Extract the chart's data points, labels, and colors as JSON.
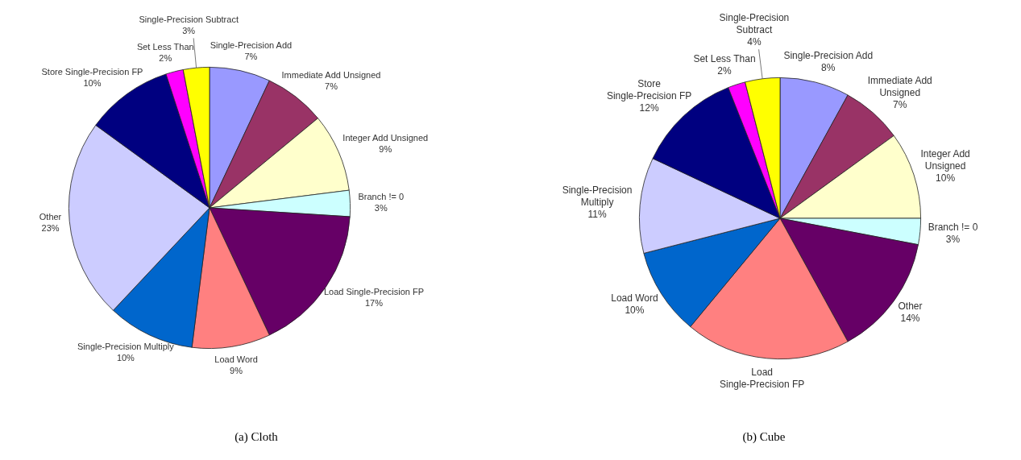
{
  "chart_data": [
    {
      "type": "pie",
      "title": "(a) Cloth",
      "categories": [
        "Single-Precision Add",
        "Immediate Add Unsigned",
        "Integer Add Unsigned",
        "Branch != 0",
        "Load Single-Precision FP",
        "Load Word",
        "Single-Precision Multiply",
        "Other",
        "Store Single-Precision FP",
        "Set Less Than",
        "Single-Precision Subtract"
      ],
      "values": [
        7,
        7,
        9,
        3,
        17,
        9,
        10,
        23,
        10,
        2,
        3
      ],
      "value_labels": [
        "7%",
        "7%",
        "9%",
        "3%",
        "17%",
        "9%",
        "10%",
        "23%",
        "10%",
        "2%",
        "3%"
      ],
      "colors": [
        "#9999ff",
        "#993366",
        "#ffffcc",
        "#ccffff",
        "#660066",
        "#ff8080",
        "#0066cc",
        "#ccccff",
        "#000080",
        "#ff00ff",
        "#ffff00"
      ]
    },
    {
      "type": "pie",
      "title": "(b) Cube",
      "categories": [
        "Single-Precision Add",
        "Immediate Add Unsigned",
        "Integer Add Unsigned",
        "Branch != 0",
        "Other",
        "Load Single-Precision FP",
        "Load Word",
        "Single-Precision Multiply",
        "Store Single-Precision FP",
        "Set Less Than",
        "Single-Precision Subtract"
      ],
      "values": [
        8,
        7,
        10,
        3,
        14,
        19,
        10,
        11,
        12,
        2,
        4
      ],
      "value_labels": [
        "8%",
        "7%",
        "10%",
        "3%",
        "14%",
        null,
        "10%",
        "11%",
        "12%",
        "2%",
        "4%"
      ],
      "colors": [
        "#9999ff",
        "#993366",
        "#ffffcc",
        "#ccffff",
        "#660066",
        "#ff8080",
        "#0066cc",
        "#ccccff",
        "#000080",
        "#ff00ff",
        "#ffff00"
      ]
    }
  ]
}
